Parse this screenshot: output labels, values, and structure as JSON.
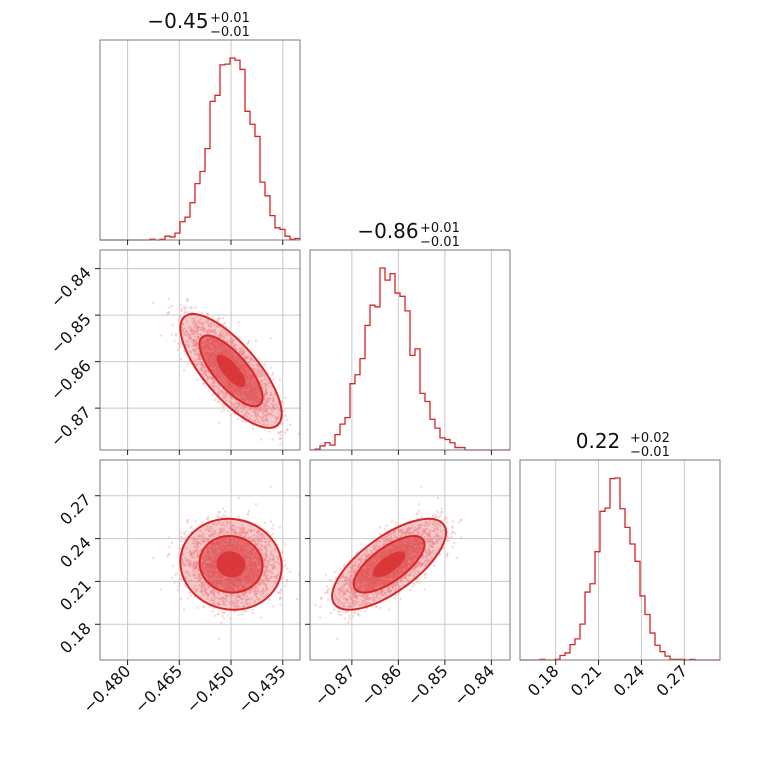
{
  "chart_data": {
    "type": "corner",
    "color": "#d62728",
    "parameters": [
      {
        "id": "p0",
        "range": [
          -0.488,
          -0.43
        ],
        "ticks": [
          -0.48,
          -0.465,
          -0.45,
          -0.435
        ],
        "tick_labels": [
          "−0.480",
          "−0.465",
          "−0.450",
          "−0.435"
        ],
        "title_value": "−0.45",
        "title_plus": "+0.01",
        "title_minus": "−0.01",
        "median": -0.45,
        "sigma": 0.006
      },
      {
        "id": "p1",
        "range": [
          -0.879,
          -0.836
        ],
        "ticks": [
          -0.87,
          -0.86,
          -0.85,
          -0.84
        ],
        "tick_labels": [
          "−0.87",
          "−0.86",
          "−0.85",
          "−0.84"
        ],
        "title_value": "−0.86",
        "title_plus": "+0.01",
        "title_minus": "−0.01",
        "median": -0.862,
        "sigma": 0.005
      },
      {
        "id": "p2",
        "range": [
          0.155,
          0.295
        ],
        "ticks": [
          0.18,
          0.21,
          0.24,
          0.27
        ],
        "tick_labels": [
          "0.18",
          "0.21",
          "0.24",
          "0.27"
        ],
        "title_value": "0.22",
        "title_plus": "+0.02",
        "title_minus": "−0.01",
        "median": 0.222,
        "sigma": 0.013
      }
    ],
    "correlations": {
      "p1_vs_p0": -0.75,
      "p2_vs_p0": -0.05,
      "p2_vs_p1": 0.7
    },
    "contour_levels": [
      "1-sigma",
      "2-sigma"
    ],
    "grid": true
  }
}
